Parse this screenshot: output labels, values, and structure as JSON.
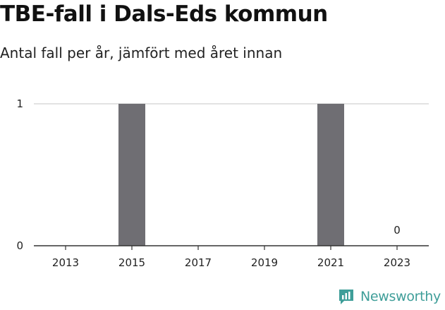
{
  "header": {
    "title": "TBE-fall i Dals-Eds kommun",
    "subtitle": "Antal fall per år, jämfört med året innan"
  },
  "brand": {
    "name": "Newsworthy",
    "color": "#3f9e99",
    "icon": "bar-chart-logo-icon"
  },
  "colors": {
    "bar": "#6f6e73",
    "gridline": "#d9d9d9",
    "axis": "#333333"
  },
  "chart_data": {
    "type": "bar",
    "title": "TBE-fall i Dals-Eds kommun",
    "subtitle": "Antal fall per år, jämfört med året innan",
    "categories": [
      "2013",
      "2014",
      "2015",
      "2016",
      "2017",
      "2018",
      "2019",
      "2020",
      "2021",
      "2022",
      "2023"
    ],
    "x_tick_labels": [
      "2013",
      "2015",
      "2017",
      "2019",
      "2021",
      "2023"
    ],
    "values": [
      0,
      0,
      1,
      0,
      0,
      0,
      0,
      0,
      1,
      0,
      0
    ],
    "data_labels": [
      {
        "category": "2023",
        "text": "0"
      }
    ],
    "y_ticks": [
      "0",
      "1"
    ],
    "ylim": [
      0,
      1
    ],
    "xlabel": "",
    "ylabel": "",
    "grid": true,
    "legend": "none"
  }
}
